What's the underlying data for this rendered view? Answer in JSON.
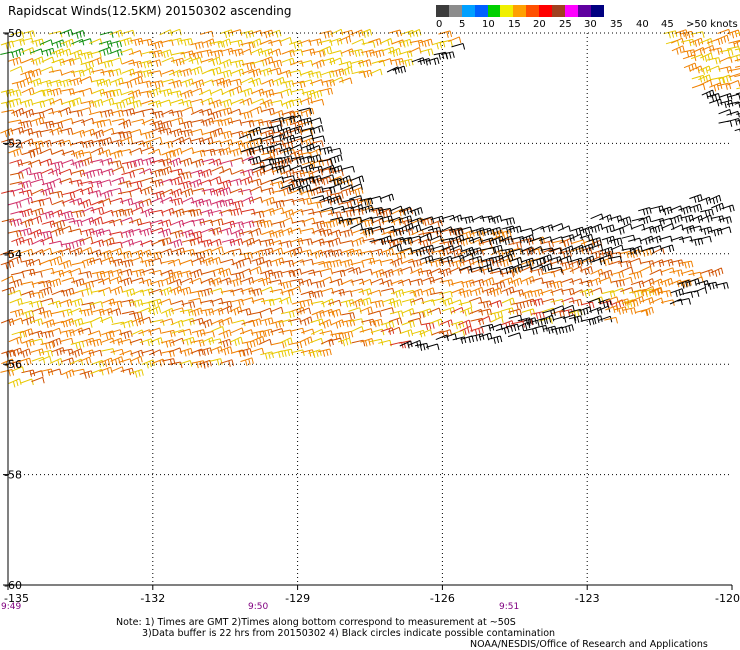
{
  "title": "Rapidscat Winds(12.5KM) 20150302 ascending",
  "colorbar": {
    "labels": [
      "0",
      "5",
      "10",
      "15",
      "20",
      "25",
      "30",
      "35",
      "40",
      "45",
      ">50 knots"
    ],
    "colors": [
      "#3c3c3c",
      "#8c8c8c",
      "#00a0ff",
      "#0060ff",
      "#00d000",
      "#f0f000",
      "#ffa000",
      "#ff5000",
      "#ff0000",
      "#a04020",
      "#ff00ff",
      "#6000a0",
      "#000080"
    ]
  },
  "axes": {
    "lon_ticks": [
      "-135",
      "-132",
      "-129",
      "-126",
      "-123",
      "-120"
    ],
    "lat_ticks": [
      "-50",
      "-52",
      "-54",
      "-56",
      "-58",
      "-60"
    ],
    "lon_range": [
      -135,
      -120
    ],
    "lat_range": [
      -50,
      -60
    ]
  },
  "times": [
    "9:49",
    "9:50",
    "9:51"
  ],
  "notes": {
    "line1": "Note: 1) Times are GMT 2)Times along bottom correspond to measurement at ~50S",
    "line2": "3)Data buffer is 22 hrs from 20150302 4) Black circles indicate possible contamination"
  },
  "credit": "NOAA/NESDIS/Office of Research and Applications",
  "wind_colors": {
    "black": "#000000",
    "yellow": "#e8c800",
    "orange": "#f08000",
    "dark_orange": "#d05000",
    "red": "#d83020",
    "magenta": "#d0306a",
    "green": "#109010"
  }
}
